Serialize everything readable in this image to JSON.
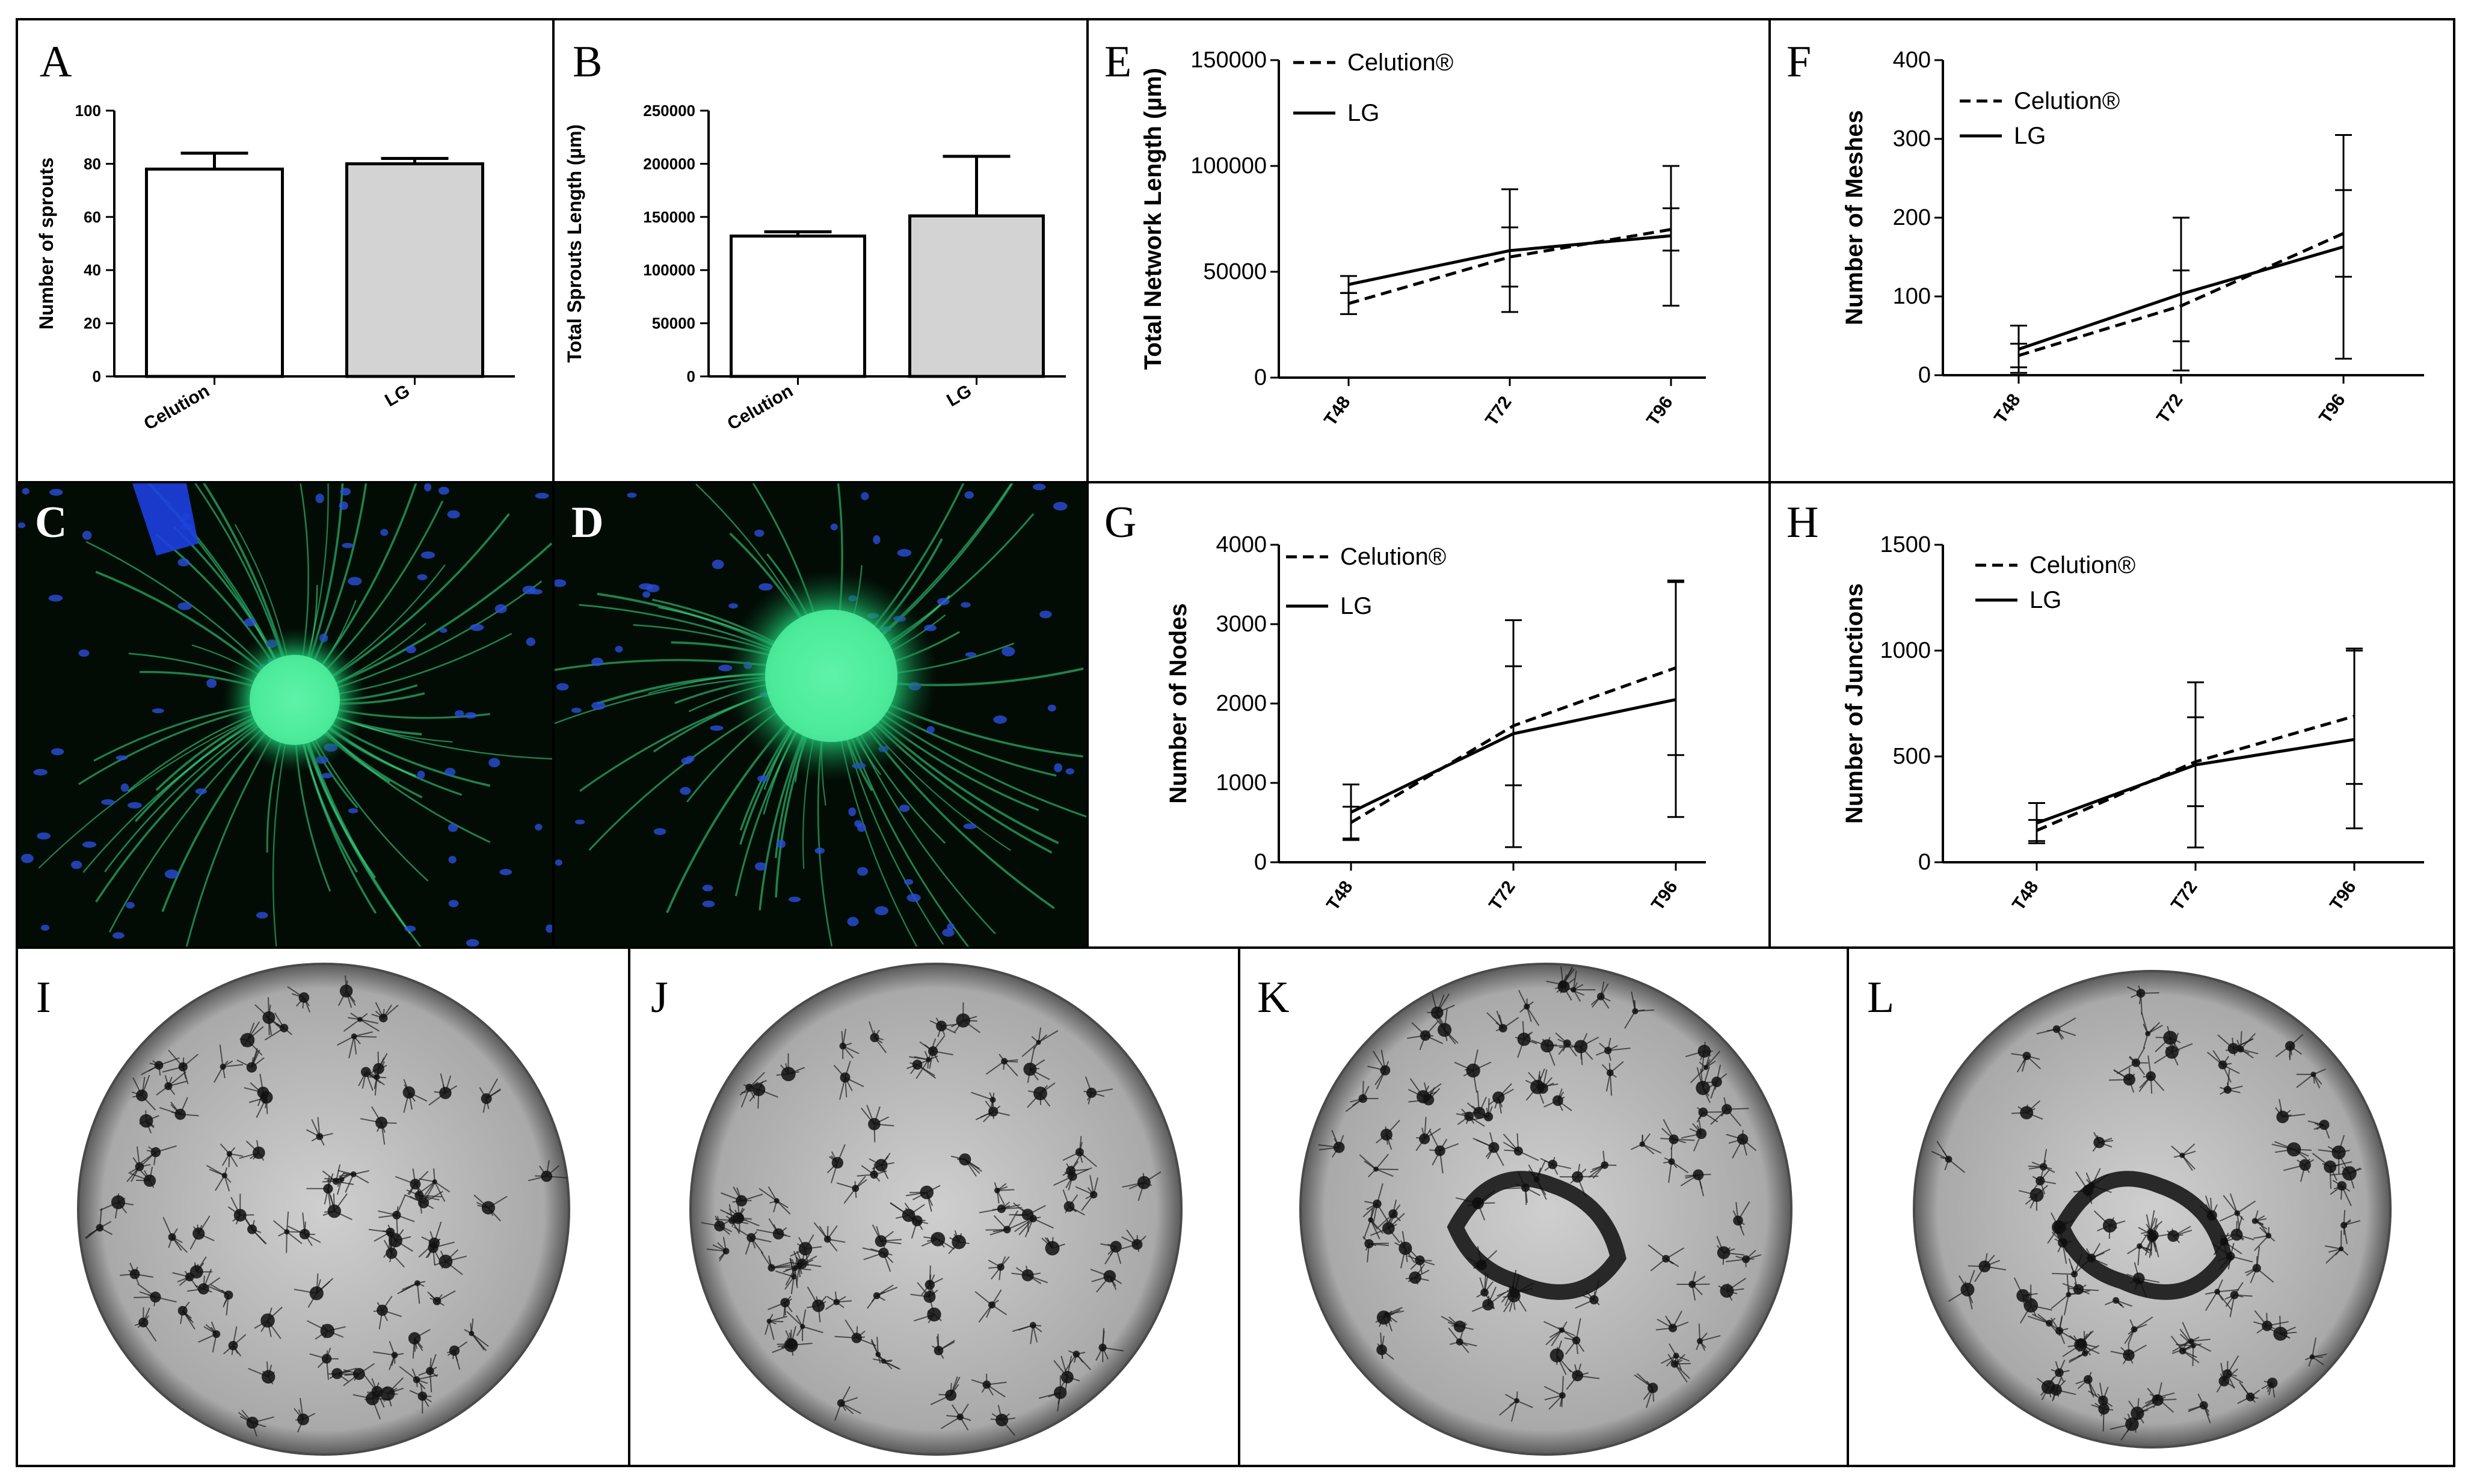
{
  "panel_letters": {
    "A": "A",
    "B": "B",
    "C": "C",
    "D": "D",
    "E": "E",
    "F": "F",
    "G": "G",
    "H": "H",
    "I": "I",
    "J": "J",
    "K": "K",
    "L": "L"
  },
  "colors": {
    "bar_celution": "#ffffff",
    "bar_lg": "#d3d3d3",
    "line": "#000000",
    "fluo_bg": "#020c05",
    "fluo_green": "#39e28a",
    "fluo_blue": "#2a4fd8",
    "well_gray": "#b9b9b9"
  },
  "chart_data": [
    {
      "id": "A",
      "type": "bar",
      "categories": [
        "Celution",
        "LG"
      ],
      "values": [
        78,
        80
      ],
      "errors": [
        6,
        2
      ],
      "title": "",
      "xlabel": "",
      "ylabel": "Number of sprouts",
      "ylim": [
        0,
        100
      ],
      "yticks": [
        0,
        20,
        40,
        60,
        80,
        100
      ],
      "ytick_labels": [
        "0",
        "20",
        "40",
        "60",
        "80",
        "100"
      ]
    },
    {
      "id": "B",
      "type": "bar",
      "categories": [
        "Celution",
        "LG"
      ],
      "values": [
        132000,
        151000
      ],
      "errors": [
        4000,
        56000
      ],
      "title": "",
      "xlabel": "",
      "ylabel": "Total Sprouts Length (µm)",
      "ylim": [
        0,
        250000
      ],
      "yticks": [
        0,
        50000,
        100000,
        150000,
        200000,
        250000
      ],
      "ytick_labels": [
        "0",
        "50000",
        "100000",
        "150000",
        "200000",
        "250000"
      ]
    },
    {
      "id": "E",
      "type": "line",
      "x": [
        "T48",
        "T72",
        "T96"
      ],
      "xlabel": "",
      "ylabel": "Total Network Length (µm)",
      "ylim": [
        0,
        150000
      ],
      "yticks": [
        0,
        50000,
        100000,
        150000
      ],
      "ytick_labels": [
        "0",
        "50000",
        "100000",
        "150000"
      ],
      "legend": "top-left",
      "series": [
        {
          "name": "Celution®",
          "dash": true,
          "values": [
            35000,
            57000,
            70000
          ],
          "errors": [
            5000,
            14000,
            10000
          ]
        },
        {
          "name": "LG",
          "dash": false,
          "values": [
            44000,
            60000,
            67000
          ],
          "errors": [
            4000,
            29000,
            33000
          ]
        }
      ]
    },
    {
      "id": "F",
      "type": "line",
      "x": [
        "T48",
        "T72",
        "T96"
      ],
      "xlabel": "",
      "ylabel": "Number of Meshes",
      "ylim": [
        0,
        400
      ],
      "yticks": [
        0,
        100,
        200,
        300,
        400
      ],
      "ytick_labels": [
        "0",
        "100",
        "200",
        "300",
        "400"
      ],
      "legend": "top-left",
      "series": [
        {
          "name": "Celution®",
          "dash": true,
          "values": [
            25,
            88,
            180
          ],
          "errors": [
            15,
            45,
            55
          ]
        },
        {
          "name": "LG",
          "dash": false,
          "values": [
            33,
            103,
            163
          ],
          "errors": [
            30,
            97,
            142
          ]
        }
      ]
    },
    {
      "id": "G",
      "type": "line",
      "x": [
        "T48",
        "T72",
        "T96"
      ],
      "xlabel": "",
      "ylabel": "Number of Nodes",
      "ylim": [
        0,
        4000
      ],
      "yticks": [
        0,
        1000,
        2000,
        3000,
        4000
      ],
      "ytick_labels": [
        "0",
        "1000",
        "2000",
        "3000",
        "4000"
      ],
      "legend": "top-left",
      "series": [
        {
          "name": "Celution®",
          "dash": true,
          "values": [
            500,
            1720,
            2450
          ],
          "errors": [
            200,
            750,
            1100
          ]
        },
        {
          "name": "LG",
          "dash": false,
          "values": [
            630,
            1620,
            2050
          ],
          "errors": [
            350,
            1430,
            1480
          ]
        }
      ]
    },
    {
      "id": "H",
      "type": "line",
      "x": [
        "T48",
        "T72",
        "T96"
      ],
      "xlabel": "",
      "ylabel": "Number of Junctions",
      "ylim": [
        0,
        1500
      ],
      "yticks": [
        0,
        500,
        1000,
        1500
      ],
      "ytick_labels": [
        "0",
        "500",
        "1000",
        "1500"
      ],
      "legend": "top-left",
      "series": [
        {
          "name": "Celution®",
          "dash": true,
          "values": [
            150,
            475,
            690
          ],
          "errors": [
            50,
            210,
            320
          ]
        },
        {
          "name": "LG",
          "dash": false,
          "values": [
            185,
            460,
            580
          ],
          "errors": [
            95,
            390,
            420
          ]
        }
      ]
    }
  ]
}
